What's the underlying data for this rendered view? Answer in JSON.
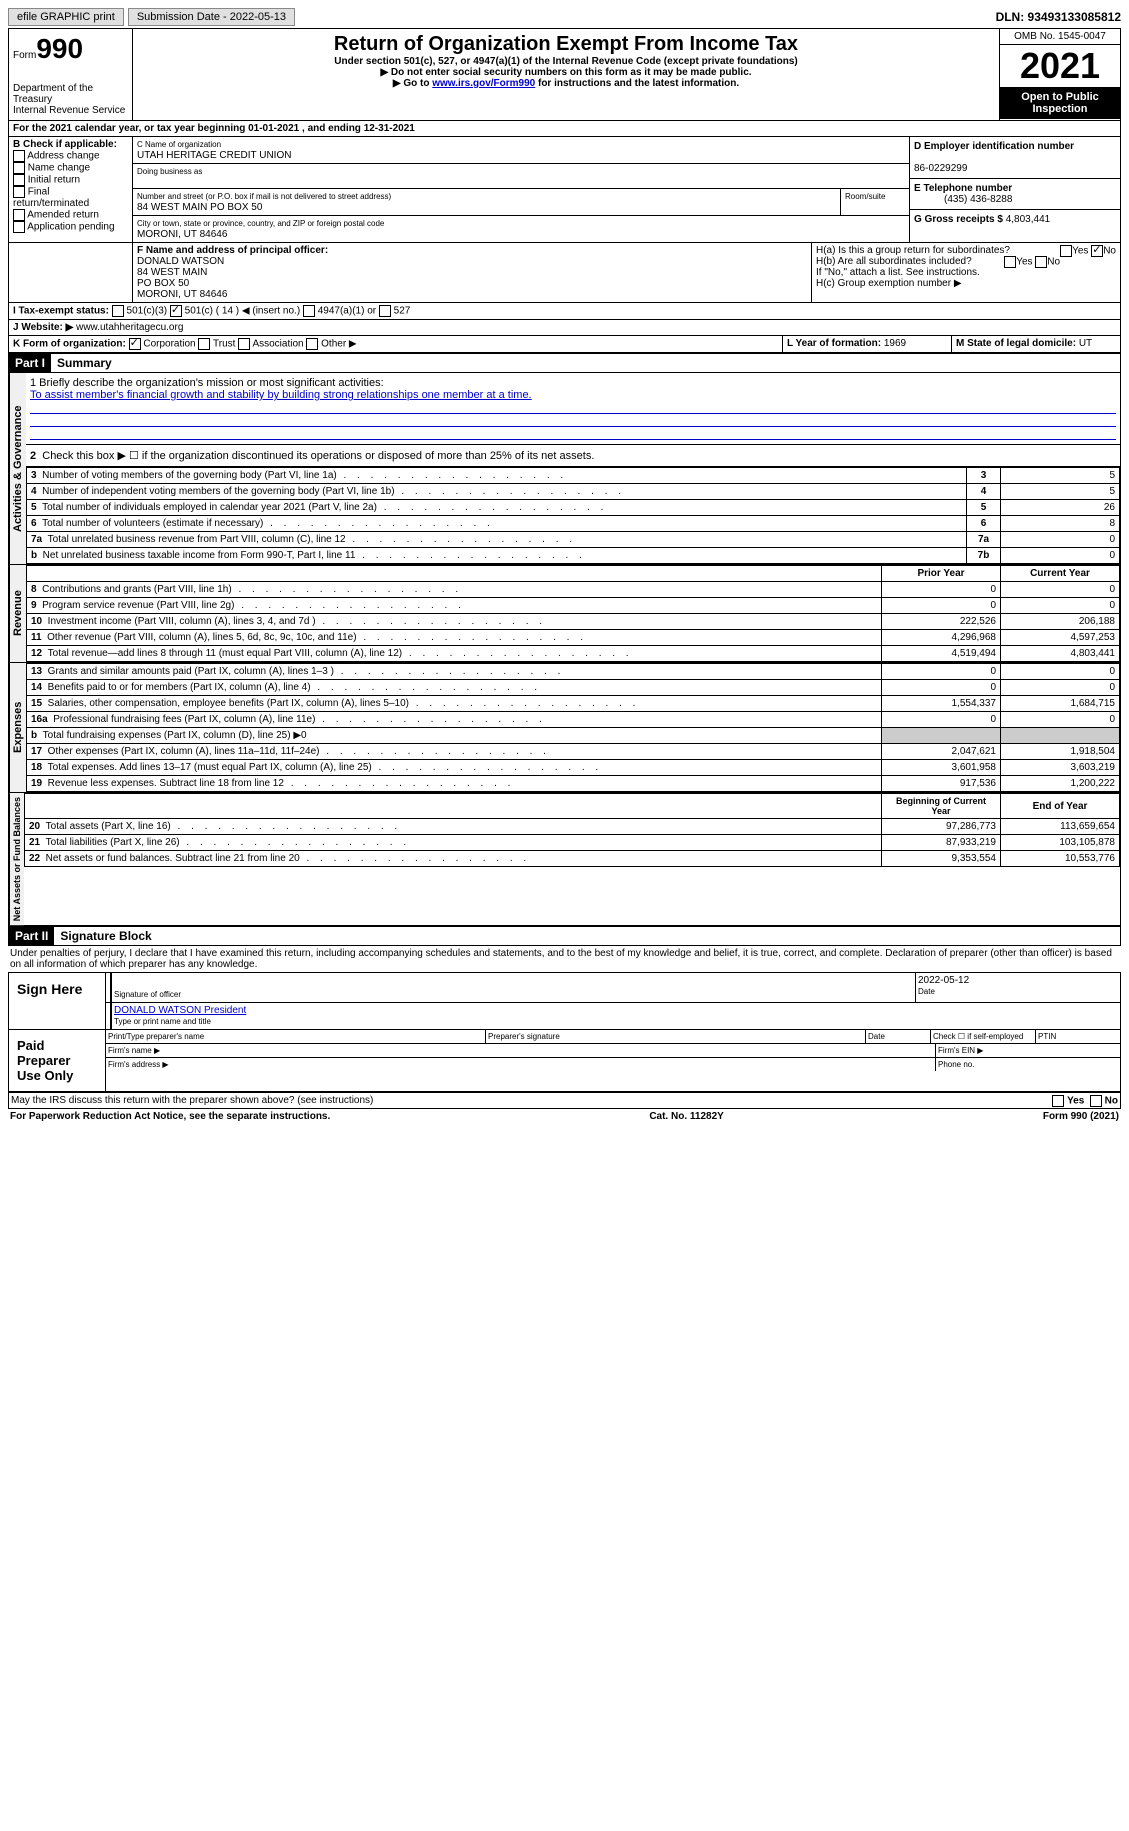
{
  "topbar": {
    "efile": "efile GRAPHIC print",
    "submission": "Submission Date - 2022-05-13",
    "dln": "DLN: 93493133085812"
  },
  "header": {
    "form": "Form",
    "form_num": "990",
    "title": "Return of Organization Exempt From Income Tax",
    "subtitle": "Under section 501(c), 527, or 4947(a)(1) of the Internal Revenue Code (except private foundations)",
    "note1": "▶ Do not enter social security numbers on this form as it may be made public.",
    "note2_prefix": "▶ Go to ",
    "note2_link": "www.irs.gov/Form990",
    "note2_suffix": " for instructions and the latest information.",
    "dept": "Department of the Treasury\nInternal Revenue Service",
    "omb": "OMB No. 1545-0047",
    "year": "2021",
    "inspection": "Open to Public Inspection"
  },
  "sectionA": {
    "text": "For the 2021 calendar year, or tax year beginning 01-01-2021    , and ending 12-31-2021"
  },
  "sectionB": {
    "label": "B Check if applicable:",
    "opts": [
      "Address change",
      "Name change",
      "Initial return",
      "Final return/terminated",
      "Amended return",
      "Application pending"
    ]
  },
  "sectionC": {
    "name_label": "C Name of organization",
    "name": "UTAH HERITAGE CREDIT UNION",
    "dba_label": "Doing business as",
    "street_label": "Number and street (or P.O. box if mail is not delivered to street address)",
    "room_label": "Room/suite",
    "street": "84 WEST MAIN PO BOX 50",
    "city_label": "City or town, state or province, country, and ZIP or foreign postal code",
    "city": "MORONI, UT  84646"
  },
  "sectionD": {
    "label": "D Employer identification number",
    "value": "86-0229299"
  },
  "sectionE": {
    "label": "E Telephone number",
    "value": "(435) 436-8288"
  },
  "sectionG": {
    "label": "G Gross receipts $",
    "value": "4,803,441"
  },
  "sectionF": {
    "label": "F Name and address of principal officer:",
    "lines": [
      "DONALD WATSON",
      "84 WEST MAIN",
      "PO BOX 50",
      "MORONI, UT  84646"
    ]
  },
  "sectionH": {
    "ha": "H(a)  Is this a group return for subordinates?",
    "hb": "H(b)  Are all subordinates included?",
    "hnote": "If \"No,\" attach a list. See instructions.",
    "hc": "H(c)  Group exemption number ▶",
    "yes": "Yes",
    "no": "No"
  },
  "sectionI": {
    "label": "I   Tax-exempt status:",
    "c3": "501(c)(3)",
    "c14": "501(c) ( 14 ) ◀ (insert no.)",
    "a1": "4947(a)(1) or",
    "s527": "527"
  },
  "sectionJ": {
    "label": "J  Website: ▶",
    "value": "www.utahheritagecu.org"
  },
  "sectionK": {
    "label": "K Form of organization:",
    "corp": "Corporation",
    "trust": "Trust",
    "assoc": "Association",
    "other": "Other ▶"
  },
  "sectionL": {
    "label": "L Year of formation:",
    "value": "1969"
  },
  "sectionM": {
    "label": "M State of legal domicile:",
    "value": "UT"
  },
  "part1": {
    "part": "Part I",
    "title": "Summary",
    "mission_label": "1   Briefly describe the organization's mission or most significant activities:",
    "mission": "To assist member's financial growth and stability by building strong relationships one member at a time.",
    "line2": "Check this box ▶ ☐ if the organization discontinued its operations or disposed of more than 25% of its net assets.",
    "governance_label": "Activities & Governance",
    "revenue_label": "Revenue",
    "expenses_label": "Expenses",
    "netassets_label": "Net Assets or Fund Balances",
    "gov_rows": [
      {
        "n": "3",
        "desc": "Number of voting members of the governing body (Part VI, line 1a)",
        "box": "3",
        "val": "5"
      },
      {
        "n": "4",
        "desc": "Number of independent voting members of the governing body (Part VI, line 1b)",
        "box": "4",
        "val": "5"
      },
      {
        "n": "5",
        "desc": "Total number of individuals employed in calendar year 2021 (Part V, line 2a)",
        "box": "5",
        "val": "26"
      },
      {
        "n": "6",
        "desc": "Total number of volunteers (estimate if necessary)",
        "box": "6",
        "val": "8"
      },
      {
        "n": "7a",
        "desc": "Total unrelated business revenue from Part VIII, column (C), line 12",
        "box": "7a",
        "val": "0"
      },
      {
        "n": "b",
        "desc": "Net unrelated business taxable income from Form 990-T, Part I, line 11",
        "box": "7b",
        "val": "0"
      }
    ],
    "prior_year": "Prior Year",
    "current_year": "Current Year",
    "rev_rows": [
      {
        "n": "8",
        "desc": "Contributions and grants (Part VIII, line 1h)",
        "py": "0",
        "cy": "0"
      },
      {
        "n": "9",
        "desc": "Program service revenue (Part VIII, line 2g)",
        "py": "0",
        "cy": "0"
      },
      {
        "n": "10",
        "desc": "Investment income (Part VIII, column (A), lines 3, 4, and 7d )",
        "py": "222,526",
        "cy": "206,188"
      },
      {
        "n": "11",
        "desc": "Other revenue (Part VIII, column (A), lines 5, 6d, 8c, 9c, 10c, and 11e)",
        "py": "4,296,968",
        "cy": "4,597,253"
      },
      {
        "n": "12",
        "desc": "Total revenue—add lines 8 through 11 (must equal Part VIII, column (A), line 12)",
        "py": "4,519,494",
        "cy": "4,803,441"
      }
    ],
    "exp_rows": [
      {
        "n": "13",
        "desc": "Grants and similar amounts paid (Part IX, column (A), lines 1–3 )",
        "py": "0",
        "cy": "0"
      },
      {
        "n": "14",
        "desc": "Benefits paid to or for members (Part IX, column (A), line 4)",
        "py": "0",
        "cy": "0"
      },
      {
        "n": "15",
        "desc": "Salaries, other compensation, employee benefits (Part IX, column (A), lines 5–10)",
        "py": "1,554,337",
        "cy": "1,684,715"
      },
      {
        "n": "16a",
        "desc": "Professional fundraising fees (Part IX, column (A), line 11e)",
        "py": "0",
        "cy": "0"
      },
      {
        "n": "b",
        "desc": "Total fundraising expenses (Part IX, column (D), line 25) ▶0",
        "py": "",
        "cy": "",
        "gray": true
      },
      {
        "n": "17",
        "desc": "Other expenses (Part IX, column (A), lines 11a–11d, 11f–24e)",
        "py": "2,047,621",
        "cy": "1,918,504"
      },
      {
        "n": "18",
        "desc": "Total expenses. Add lines 13–17 (must equal Part IX, column (A), line 25)",
        "py": "3,601,958",
        "cy": "3,603,219"
      },
      {
        "n": "19",
        "desc": "Revenue less expenses. Subtract line 18 from line 12",
        "py": "917,536",
        "cy": "1,200,222"
      }
    ],
    "begin_year": "Beginning of Current Year",
    "end_year": "End of Year",
    "net_rows": [
      {
        "n": "20",
        "desc": "Total assets (Part X, line 16)",
        "py": "97,286,773",
        "cy": "113,659,654"
      },
      {
        "n": "21",
        "desc": "Total liabilities (Part X, line 26)",
        "py": "87,933,219",
        "cy": "103,105,878"
      },
      {
        "n": "22",
        "desc": "Net assets or fund balances. Subtract line 21 from line 20",
        "py": "9,353,554",
        "cy": "10,553,776"
      }
    ]
  },
  "part2": {
    "part": "Part II",
    "title": "Signature Block",
    "penalties": "Under penalties of perjury, I declare that I have examined this return, including accompanying schedules and statements, and to the best of my knowledge and belief, it is true, correct, and complete. Declaration of preparer (other than officer) is based on all information of which preparer has any knowledge.",
    "sign_here": "Sign Here",
    "sig_officer": "Signature of officer",
    "date": "Date",
    "sig_date": "2022-05-12",
    "officer_name": "DONALD WATSON  President",
    "type_name": "Type or print name and title",
    "paid": "Paid Preparer Use Only",
    "prep_name": "Print/Type preparer's name",
    "prep_sig": "Preparer's signature",
    "prep_date": "Date",
    "check_if": "Check ☐ if self-employed",
    "ptin": "PTIN",
    "firm_name": "Firm's name   ▶",
    "firm_ein": "Firm's EIN ▶",
    "firm_addr": "Firm's address ▶",
    "phone": "Phone no.",
    "discuss": "May the IRS discuss this return with the preparer shown above? (see instructions)"
  },
  "footer": {
    "paperwork": "For Paperwork Reduction Act Notice, see the separate instructions.",
    "cat": "Cat. No. 11282Y",
    "form": "Form 990 (2021)"
  }
}
